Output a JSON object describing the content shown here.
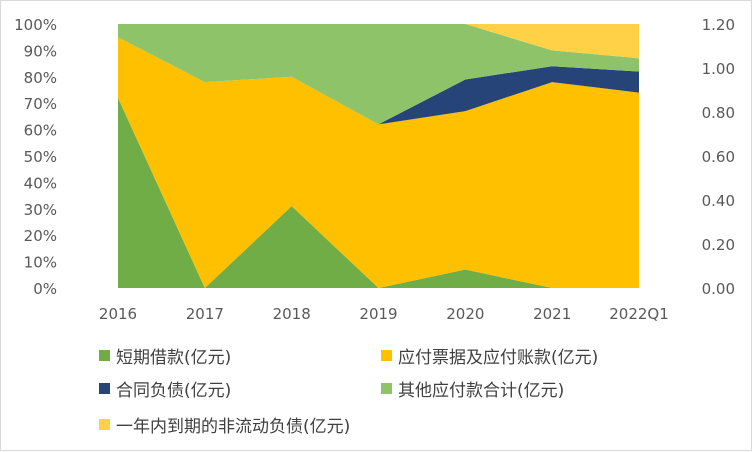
{
  "chart_data": {
    "type": "area",
    "stacked": "percent",
    "categories": [
      "2016",
      "2017",
      "2018",
      "2019",
      "2020",
      "2021",
      "2022Q1"
    ],
    "series": [
      {
        "name": "短期借款(亿元)",
        "color": "#70AD47",
        "values": [
          72,
          0,
          31,
          0,
          7,
          0,
          0
        ]
      },
      {
        "name": "应付票据及应付账款(亿元)",
        "color": "#FFC000",
        "values": [
          23,
          78,
          49,
          62,
          60,
          78,
          74
        ]
      },
      {
        "name": "合同负债(亿元)",
        "color": "#264478",
        "values": [
          0,
          0,
          0,
          0,
          12,
          6,
          8
        ]
      },
      {
        "name": "其他应付款合计(亿元)",
        "color": "#8FC36A",
        "values": [
          5,
          22,
          20,
          38,
          21,
          6,
          5
        ]
      },
      {
        "name": "一年内到期的非流动负债(亿元)",
        "color": "#FFD147",
        "values": [
          0,
          0,
          0,
          0,
          0,
          10,
          13
        ]
      }
    ],
    "y_left": {
      "ticks": [
        "0%",
        "10%",
        "20%",
        "30%",
        "40%",
        "50%",
        "60%",
        "70%",
        "80%",
        "90%",
        "100%"
      ],
      "range": [
        0,
        100
      ]
    },
    "y_right": {
      "ticks": [
        "0.00",
        "0.20",
        "0.40",
        "0.60",
        "0.80",
        "1.00",
        "1.20"
      ],
      "range": [
        0,
        1.2
      ]
    },
    "legend_position": "bottom",
    "grid": false
  }
}
